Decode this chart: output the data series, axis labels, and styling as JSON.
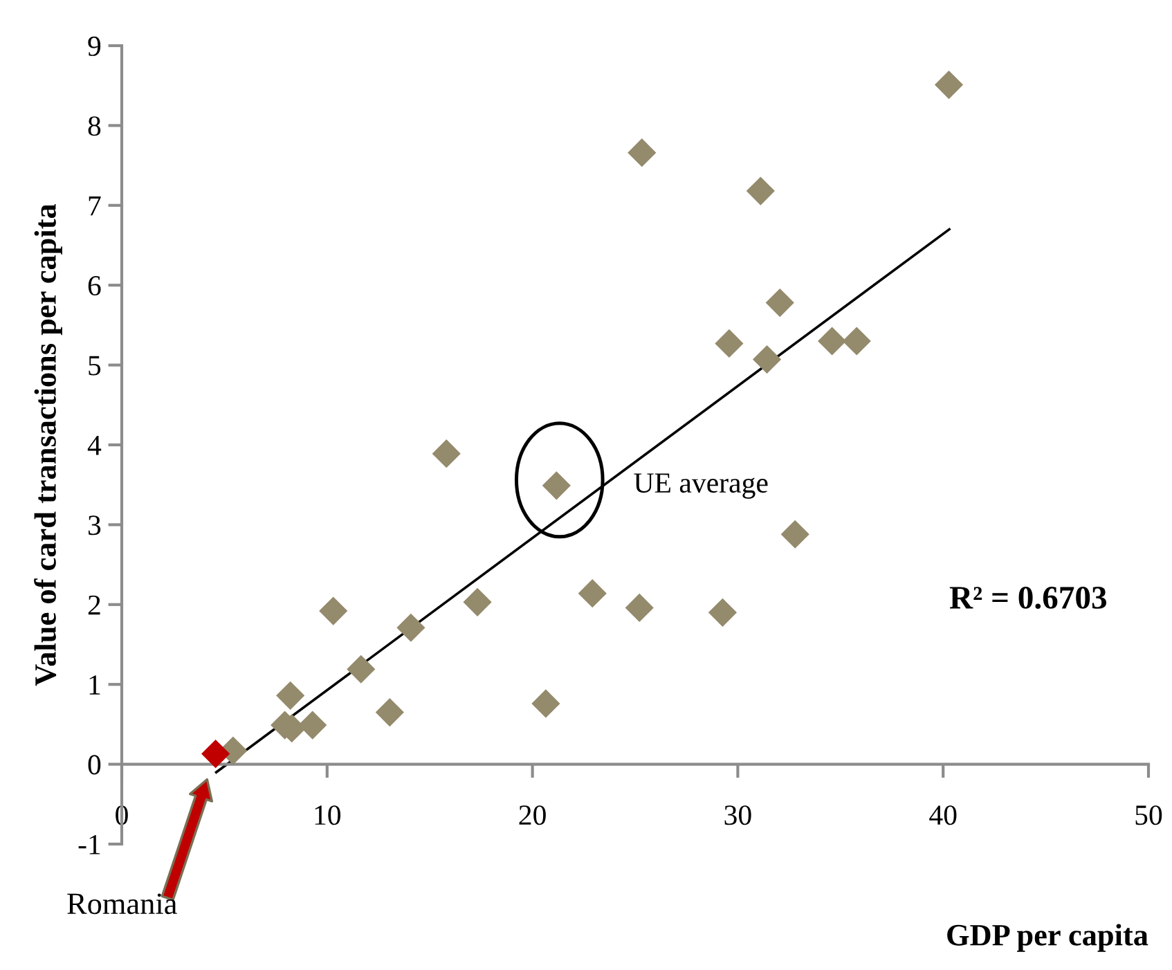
{
  "chart_data": {
    "type": "scatter",
    "xlabel": "GDP per capita",
    "ylabel": "Value of card transactions per capita",
    "xlim": [
      0,
      50
    ],
    "xticks": [
      0,
      10,
      20,
      30,
      40,
      50
    ],
    "ylim": [
      -1,
      9
    ],
    "yticks": [
      -1,
      0,
      1,
      2,
      3,
      4,
      5,
      6,
      7,
      8,
      9
    ],
    "grid": false,
    "legend": false,
    "marker": "diamond",
    "series": [
      {
        "color": "#948a6c",
        "x": [
          5.42,
          8.21,
          7.94,
          8.28,
          9.29,
          10.3,
          11.65,
          13.05,
          14.08,
          15.81,
          17.32,
          20.65,
          21.17,
          22.92,
          25.21,
          25.33,
          29.26,
          29.58,
          31.11,
          31.42,
          32.05,
          32.79,
          34.59,
          35.79,
          40.28
        ],
        "values": [
          0.17,
          0.86,
          0.49,
          0.45,
          0.49,
          1.92,
          1.19,
          0.65,
          1.71,
          3.89,
          2.03,
          0.76,
          3.49,
          2.14,
          1.96,
          7.66,
          1.9,
          5.27,
          7.18,
          5.07,
          5.78,
          2.88,
          5.3,
          5.3,
          8.51
        ]
      },
      {
        "color": "#c00000",
        "x": [
          4.57
        ],
        "values": [
          0.13
        ]
      },
      {
        "type": "line",
        "color": "#000000",
        "x": [
          4.6,
          40.3
        ],
        "values": [
          -0.1,
          6.7
        ],
        "marker": "none",
        "line_style": "solid"
      }
    ],
    "annotations": [
      {
        "text": "UE average",
        "x": 21.17,
        "y": 3.49
      },
      "Romania",
      "R² = 0.6703"
    ]
  }
}
